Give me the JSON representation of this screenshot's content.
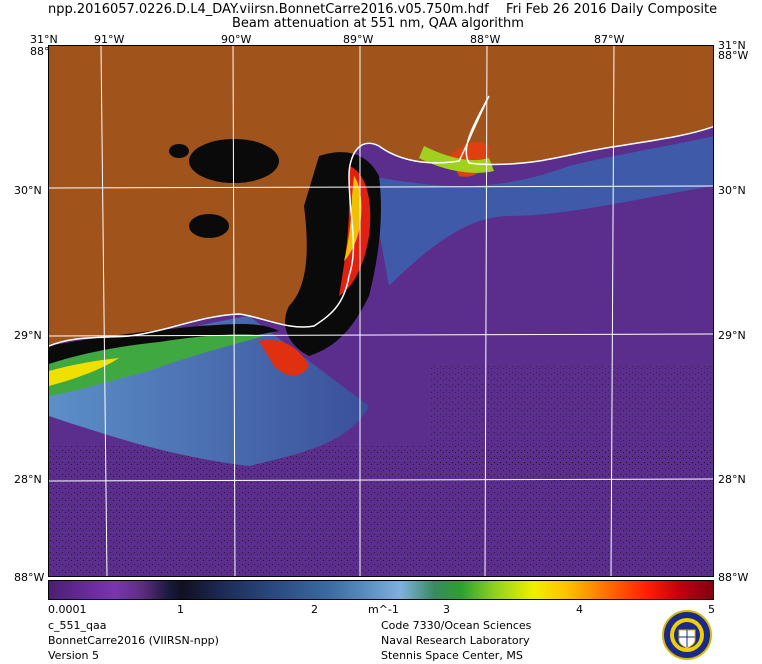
{
  "header": {
    "filename": "npp.2016057.0226.D.L4_DAY.viirsn.BonnetCarre2016.v05.750m.hdf",
    "date": "Fri Feb 26 2016 Daily Composite",
    "subtitle": "Beam attenuation at 551 nm, QAA algorithm"
  },
  "map": {
    "top_lon_labels": [
      "91°W",
      "90°W",
      "89°W",
      "88°W",
      "87°W"
    ],
    "corner_top_left": "31°N",
    "corner_top_left_2": "88°W",
    "corner_top_right": "31°N",
    "corner_top_right_2": "88°W",
    "corner_bottom_left": "88°W",
    "corner_bottom_right": "88°W",
    "lat_labels_left": [
      "30°N",
      "29°N",
      "28°N"
    ],
    "lat_labels_right": [
      "30°N",
      "29°N",
      "28°N"
    ],
    "colors": {
      "land": "#a0531a",
      "ocean": "#5b2d8c",
      "coast": "#ffffff",
      "turbid_black": "#0a0a0a"
    }
  },
  "colorbar": {
    "tick_labels": [
      "0.0001",
      "1",
      "2",
      "m^-1",
      "3",
      "4",
      "5"
    ]
  },
  "footer": {
    "left": [
      "c_551_qaa",
      "BonnetCarre2016 (VIIRSN-npp)",
      "Version 5"
    ],
    "right": [
      "Code 7330/Ocean Sciences",
      "Naval Research Laboratory",
      "Stennis Space Center, MS"
    ]
  }
}
